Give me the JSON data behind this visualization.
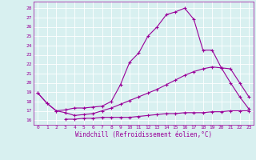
{
  "line1_x": [
    0,
    1,
    2,
    3,
    4,
    5,
    6,
    7,
    8,
    9,
    10,
    11,
    12,
    13,
    14,
    15,
    16,
    17,
    18,
    19,
    20,
    21,
    22,
    23
  ],
  "line1_y": [
    18.9,
    17.8,
    17.0,
    17.1,
    17.3,
    17.3,
    17.4,
    17.5,
    18.0,
    19.8,
    22.2,
    23.2,
    25.0,
    26.0,
    27.3,
    27.6,
    28.0,
    26.8,
    23.5,
    23.5,
    21.6,
    20.0,
    18.5,
    17.2
  ],
  "line2_x": [
    0,
    1,
    2,
    3,
    4,
    5,
    6,
    7,
    8,
    9,
    10,
    11,
    12,
    13,
    14,
    15,
    16,
    17,
    18,
    19,
    20,
    21,
    22,
    23
  ],
  "line2_y": [
    18.9,
    17.8,
    17.0,
    16.8,
    16.5,
    16.6,
    16.7,
    17.0,
    17.3,
    17.7,
    18.1,
    18.5,
    18.9,
    19.3,
    19.8,
    20.3,
    20.8,
    21.2,
    21.5,
    21.7,
    21.6,
    21.5,
    20.0,
    18.5
  ],
  "line3_x": [
    3,
    4,
    5,
    6,
    7,
    8,
    9,
    10,
    11,
    12,
    13,
    14,
    15,
    16,
    17,
    18,
    19,
    20,
    21,
    22,
    23
  ],
  "line3_y": [
    16.1,
    16.1,
    16.2,
    16.2,
    16.3,
    16.3,
    16.3,
    16.3,
    16.4,
    16.5,
    16.6,
    16.7,
    16.7,
    16.8,
    16.8,
    16.8,
    16.9,
    16.9,
    17.0,
    17.0,
    17.0
  ],
  "color": "#990099",
  "bgcolor": "#d8f0f0",
  "ylabel_ticks": [
    16,
    17,
    18,
    19,
    20,
    21,
    22,
    23,
    24,
    25,
    26,
    27,
    28
  ],
  "xlabel_ticks": [
    0,
    1,
    2,
    3,
    4,
    5,
    6,
    7,
    8,
    9,
    10,
    11,
    12,
    13,
    14,
    15,
    16,
    17,
    18,
    19,
    20,
    21,
    22,
    23
  ],
  "xlabel": "Windchill (Refroidissement éolien,°C)",
  "ylim": [
    15.5,
    28.7
  ],
  "xlim": [
    -0.5,
    23.5
  ],
  "marker": "+"
}
